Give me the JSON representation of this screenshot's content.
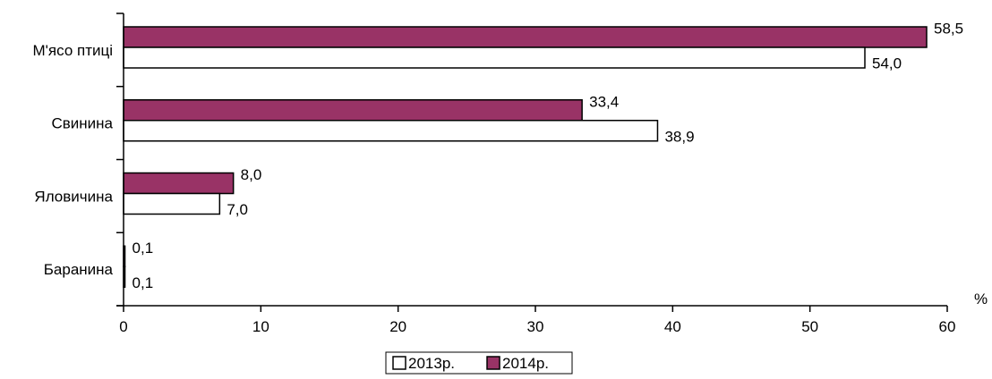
{
  "chart_data": {
    "type": "bar",
    "orientation": "horizontal",
    "title": "",
    "xlabel": "",
    "ylabel": "",
    "x_unit_label": "%",
    "xlim": [
      0,
      60
    ],
    "x_ticks": [
      0,
      10,
      20,
      30,
      40,
      50,
      60
    ],
    "grid": false,
    "categories": [
      "М'ясо птиці",
      "Свинина",
      "Яловичина",
      "Баранина"
    ],
    "series": [
      {
        "name": "2014р.",
        "color": "#993366",
        "values": [
          58.5,
          33.4,
          8.0,
          0.1
        ],
        "labels": [
          "58,5",
          "33,4",
          "8,0",
          "0,1"
        ]
      },
      {
        "name": "2013р.",
        "color": "#ffffff",
        "values": [
          54.0,
          38.9,
          7.0,
          0.1
        ],
        "labels": [
          "54,0",
          "38,9",
          "7,0",
          "0,1"
        ]
      }
    ],
    "legend": {
      "placement": "bottom-center",
      "items": [
        {
          "label": "2013р.",
          "color": "#ffffff"
        },
        {
          "label": "2014р.",
          "color": "#993366"
        }
      ]
    }
  }
}
